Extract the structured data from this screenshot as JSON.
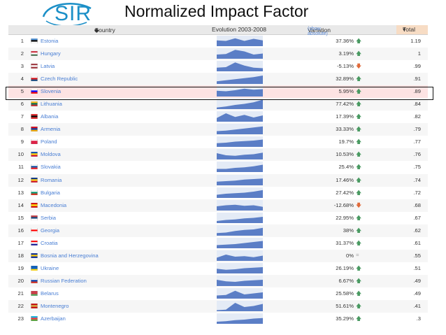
{
  "logo": {
    "text": "SIR"
  },
  "title": "Normalized Impact Factor",
  "table": {
    "headers": {
      "country": "Country",
      "sort_icon": "sort-icon",
      "evolution": "Evolution 2003-2008",
      "variation": "Variation",
      "show_absolute": "(show absolute)",
      "total": "Total"
    },
    "highlight_rank": 5,
    "colors": {
      "spark_fill": "#5b7ec6",
      "spark_bg": "#e4ebf6",
      "up": "#4a9a62",
      "down": "#e06a3a",
      "link": "#4a7fd4"
    },
    "rows": [
      {
        "rank": "1",
        "country": "Estonia",
        "variation": "37.36%",
        "trend": "up",
        "total": "1.19",
        "flag": [
          "#4891d9",
          "#000000",
          "#ffffff"
        ],
        "spark": [
          0.55,
          0.5,
          0.75,
          0.5,
          0.7,
          0.55
        ]
      },
      {
        "rank": "2",
        "country": "Hungary",
        "variation": "3.19%",
        "trend": "up",
        "total": "1",
        "flag": [
          "#ce2939",
          "#ffffff",
          "#477050"
        ],
        "spark": [
          0.4,
          0.45,
          0.85,
          0.7,
          0.4,
          0.5
        ]
      },
      {
        "rank": "3",
        "country": "Latvia",
        "variation": "-5.13%",
        "trend": "down",
        "total": ".99",
        "flag": [
          "#9e3039",
          "#ffffff",
          "#9e3039"
        ],
        "spark": [
          0.35,
          0.4,
          0.85,
          0.55,
          0.35,
          0.3
        ]
      },
      {
        "rank": "4",
        "country": "Czech Republic",
        "variation": "32.89%",
        "trend": "up",
        "total": ".91",
        "flag": [
          "#ffffff",
          "#d7141a",
          "#11457e"
        ],
        "spark": [
          0.25,
          0.35,
          0.45,
          0.55,
          0.65,
          0.8
        ]
      },
      {
        "rank": "5",
        "country": "Slovenia",
        "variation": "5.95%",
        "trend": "up",
        "total": ".89",
        "flag": [
          "#ffffff",
          "#0000ff",
          "#ff0000"
        ],
        "spark": [
          0.55,
          0.5,
          0.6,
          0.75,
          0.65,
          0.7
        ]
      },
      {
        "rank": "6",
        "country": "Lithuania",
        "variation": "77.42%",
        "trend": "up",
        "total": ".84",
        "flag": [
          "#fdb913",
          "#006a44",
          "#c1272d"
        ],
        "spark": [
          0.15,
          0.25,
          0.4,
          0.5,
          0.65,
          0.9
        ]
      },
      {
        "rank": "7",
        "country": "Albania",
        "variation": "17.39%",
        "trend": "up",
        "total": ".82",
        "flag": [
          "#e41e20",
          "#000000",
          "#e41e20"
        ],
        "spark": [
          0.35,
          0.8,
          0.45,
          0.65,
          0.4,
          0.6
        ]
      },
      {
        "rank": "8",
        "country": "Armenia",
        "variation": "33.33%",
        "trend": "up",
        "total": ".79",
        "flag": [
          "#d90012",
          "#0033a0",
          "#f2a800"
        ],
        "spark": [
          0.3,
          0.35,
          0.45,
          0.55,
          0.65,
          0.75
        ]
      },
      {
        "rank": "9",
        "country": "Poland",
        "variation": "19.7%",
        "trend": "up",
        "total": ".77",
        "flag": [
          "#ffffff",
          "#dc143c",
          "#dc143c"
        ],
        "spark": [
          0.35,
          0.4,
          0.5,
          0.55,
          0.6,
          0.7
        ]
      },
      {
        "rank": "10",
        "country": "Moldova",
        "variation": "10.53%",
        "trend": "up",
        "total": ".76",
        "flag": [
          "#0046ae",
          "#ffd200",
          "#cc092f"
        ],
        "spark": [
          0.6,
          0.4,
          0.35,
          0.45,
          0.5,
          0.65
        ]
      },
      {
        "rank": "11",
        "country": "Slovakia",
        "variation": "25.4%",
        "trend": "up",
        "total": ".75",
        "flag": [
          "#ffffff",
          "#0b4ea2",
          "#ee1c25"
        ],
        "spark": [
          0.3,
          0.3,
          0.4,
          0.45,
          0.55,
          0.7
        ]
      },
      {
        "rank": "12",
        "country": "Romania",
        "variation": "17.46%",
        "trend": "up",
        "total": ".74",
        "flag": [
          "#002b7f",
          "#fcd116",
          "#ce1126"
        ],
        "spark": [
          0.35,
          0.4,
          0.45,
          0.55,
          0.6,
          0.65
        ]
      },
      {
        "rank": "13",
        "country": "Bulgaria",
        "variation": "27.42%",
        "trend": "up",
        "total": ".72",
        "flag": [
          "#ffffff",
          "#00966e",
          "#d62612"
        ],
        "spark": [
          0.3,
          0.4,
          0.45,
          0.5,
          0.6,
          0.75
        ]
      },
      {
        "rank": "14",
        "country": "Macedonia",
        "variation": "-12.68%",
        "trend": "down",
        "total": ".68",
        "flag": [
          "#d20000",
          "#ffe600",
          "#d20000"
        ],
        "spark": [
          0.4,
          0.5,
          0.55,
          0.45,
          0.5,
          0.35
        ]
      },
      {
        "rank": "15",
        "country": "Serbia",
        "variation": "22.95%",
        "trend": "up",
        "total": ".67",
        "flag": [
          "#c6363c",
          "#0c4076",
          "#ffffff"
        ],
        "spark": [
          0.2,
          0.3,
          0.35,
          0.45,
          0.5,
          0.6
        ]
      },
      {
        "rank": "16",
        "country": "Georgia",
        "variation": "38%",
        "trend": "up",
        "total": ".62",
        "flag": [
          "#ffffff",
          "#ff0000",
          "#ffffff"
        ],
        "spark": [
          0.25,
          0.3,
          0.45,
          0.55,
          0.6,
          0.75
        ]
      },
      {
        "rank": "17",
        "country": "Croatia",
        "variation": "31.37%",
        "trend": "up",
        "total": ".61",
        "flag": [
          "#ff0000",
          "#ffffff",
          "#171796"
        ],
        "spark": [
          0.3,
          0.35,
          0.4,
          0.5,
          0.6,
          0.7
        ]
      },
      {
        "rank": "18",
        "country": "Bosnia and Herzegovina",
        "variation": "0%",
        "trend": "flat",
        "total": ".55",
        "flag": [
          "#002395",
          "#fecb00",
          "#002395"
        ],
        "spark": [
          0.3,
          0.6,
          0.4,
          0.45,
          0.35,
          0.5
        ]
      },
      {
        "rank": "19",
        "country": "Ukraine",
        "variation": "26.19%",
        "trend": "up",
        "total": ".51",
        "flag": [
          "#0057b7",
          "#0057b7",
          "#ffd700"
        ],
        "spark": [
          0.45,
          0.35,
          0.4,
          0.5,
          0.55,
          0.6
        ]
      },
      {
        "rank": "20",
        "country": "Russian Federation",
        "variation": "6.67%",
        "trend": "up",
        "total": ".49",
        "flag": [
          "#ffffff",
          "#0039a6",
          "#d52b1e"
        ],
        "spark": [
          0.6,
          0.45,
          0.4,
          0.5,
          0.55,
          0.6
        ]
      },
      {
        "rank": "21",
        "country": "Belarus",
        "variation": "25.58%",
        "trend": "up",
        "total": ".49",
        "flag": [
          "#c8313e",
          "#c8313e",
          "#4aa657"
        ],
        "spark": [
          0.3,
          0.35,
          0.75,
          0.4,
          0.5,
          0.6
        ]
      },
      {
        "rank": "22",
        "country": "Montenegro",
        "variation": "51.61%",
        "trend": "up",
        "total": ".41",
        "flag": [
          "#c40308",
          "#d3ae3b",
          "#c40308"
        ],
        "spark": [
          0.1,
          0.15,
          0.8,
          0.4,
          0.5,
          0.7
        ]
      },
      {
        "rank": "23",
        "country": "Azerbaijan",
        "variation": "35.29%",
        "trend": "up",
        "total": ".3",
        "flag": [
          "#00b5e2",
          "#ef3340",
          "#509e2f"
        ],
        "spark": [
          0.2,
          0.25,
          0.35,
          0.4,
          0.5,
          0.55
        ]
      }
    ]
  }
}
